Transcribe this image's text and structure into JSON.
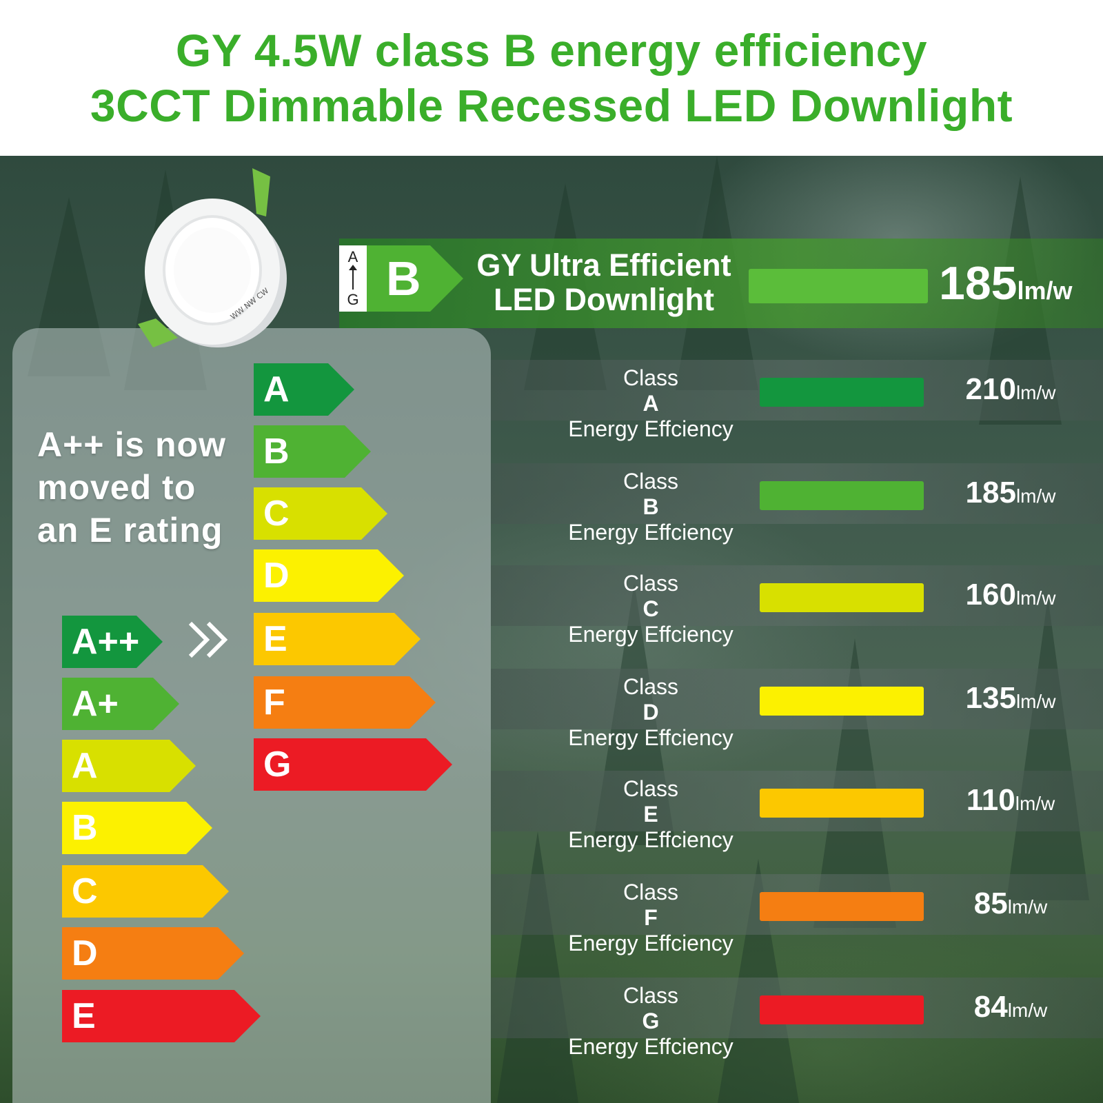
{
  "header": {
    "title_line1": "GY 4.5W class B energy efficiency",
    "title_line2": "3CCT Dimmable Recessed LED Downlight",
    "title_color": "#3aae2a"
  },
  "product": {
    "icon": "led-downlight-image",
    "print_text": "WW NW CW"
  },
  "left_panel": {
    "message_lines": [
      "A++ is now",
      "moved to",
      "an E rating"
    ],
    "old_scale": [
      {
        "label": "A++",
        "color": "#13963e"
      },
      {
        "label": "A+",
        "color": "#4fb233"
      },
      {
        "label": "A",
        "color": "#d8e000"
      },
      {
        "label": "B",
        "color": "#fcf100"
      },
      {
        "label": "C",
        "color": "#fcc800"
      },
      {
        "label": "D",
        "color": "#f57e12"
      },
      {
        "label": "E",
        "color": "#ec1b24"
      }
    ],
    "new_scale": [
      {
        "label": "A",
        "color": "#13963e"
      },
      {
        "label": "B",
        "color": "#4fb233"
      },
      {
        "label": "C",
        "color": "#d8e000"
      },
      {
        "label": "D",
        "color": "#fcf100"
      },
      {
        "label": "E",
        "color": "#fcc800"
      },
      {
        "label": "F",
        "color": "#f57e12"
      },
      {
        "label": "G",
        "color": "#ec1b24"
      }
    ],
    "arrow_icon": "double-chevron-right-icon"
  },
  "featured": {
    "scale_top": "A",
    "scale_bottom": "G",
    "badge": "B",
    "badge_color": "#4fb233",
    "name_line1": "GY Ultra Efficient",
    "name_line2": "LED Downlight",
    "value": "185",
    "unit": "lm/w",
    "bar_color": "#5bbd3a"
  },
  "classes": [
    {
      "prefix": "Class ",
      "letter": "A",
      "sub": "Energy Effciency",
      "value": "210",
      "unit": "lm/w",
      "color": "#13963e"
    },
    {
      "prefix": "Class ",
      "letter": "B",
      "sub": "Energy Effciency",
      "value": "185",
      "unit": "lm/w",
      "color": "#4fb233"
    },
    {
      "prefix": "Class ",
      "letter": "C",
      "sub": "Energy Effciency",
      "value": "160",
      "unit": "lm/w",
      "color": "#d8e000"
    },
    {
      "prefix": "Class ",
      "letter": "D",
      "sub": "Energy Effciency",
      "value": "135",
      "unit": "lm/w",
      "color": "#fcf100"
    },
    {
      "prefix": "Class ",
      "letter": "E",
      "sub": "Energy Effciency",
      "value": "110",
      "unit": "lm/w",
      "color": "#fcc800"
    },
    {
      "prefix": "Class ",
      "letter": "F",
      "sub": "Energy Effciency",
      "value": "85",
      "unit": "lm/w",
      "color": "#f57e12"
    },
    {
      "prefix": "Class ",
      "letter": "G",
      "sub": "Energy Effciency",
      "value": "84",
      "unit": "lm/w",
      "color": "#ec1b24"
    }
  ]
}
